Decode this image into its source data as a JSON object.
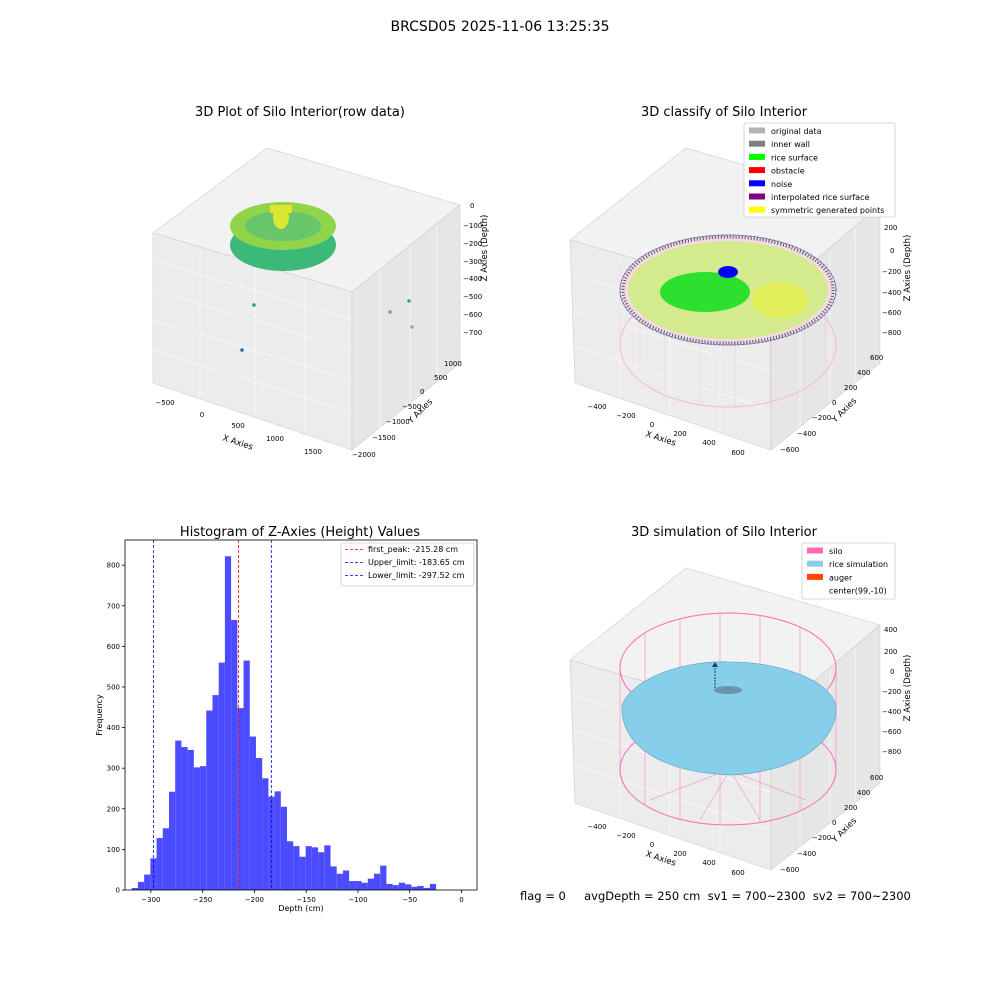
{
  "figure": {
    "suptitle": "BRCSD05 2025-11-06 13:25:35",
    "status_text": "flag = 0     avgDepth = 250 cm  sv1 = 700~2300  sv2 = 700~2300"
  },
  "colors": {
    "hist_bar": "#4b4bff",
    "peak_line": "#ff0000",
    "limit_line": "#0000ff",
    "silo": "#ff69b4",
    "rice_simulation": "#87ceeb",
    "auger": "#ff4500",
    "original_data": "#b3b3b3",
    "inner_wall": "#808080",
    "rice_surface": "#00ff00",
    "obstacle": "#ff0000",
    "noise": "#0000ff",
    "interpolated_rice_surface": "#800080",
    "symmetric_generated_points": "#ffff00"
  },
  "chart_data": [
    {
      "id": "raw",
      "type": "scatter",
      "title": "3D Plot of Silo Interior(row data)",
      "xlabel": "X Axies",
      "ylabel": "Y Axies",
      "zlabel": "Z Axies (Depth)",
      "xticks": [
        "−500",
        "0",
        "500",
        "1000",
        "1500"
      ],
      "yticks": [
        "1000",
        "500",
        "0",
        "−500",
        "−1000",
        "−1500",
        "−2000"
      ],
      "zticks": [
        "0",
        "−100",
        "−200",
        "−300",
        "−400",
        "−500",
        "−600",
        "−700"
      ],
      "grid": true
    },
    {
      "id": "classify",
      "type": "scatter",
      "title": "3D classify of Silo Interior",
      "xlabel": "X Axies",
      "ylabel": "Y Axies",
      "zlabel": "Z Axies (Depth)",
      "xticks": [
        "−400",
        "−200",
        "0",
        "200",
        "400",
        "600"
      ],
      "yticks": [
        "600",
        "400",
        "200",
        "0",
        "−200",
        "−400",
        "−600"
      ],
      "zticks": [
        "200",
        "0",
        "−200",
        "−400",
        "−600",
        "−800"
      ],
      "legend_position": "top-right",
      "legend": [
        {
          "label": "original data",
          "color": "#b3b3b3"
        },
        {
          "label": "inner wall",
          "color": "#808080"
        },
        {
          "label": "rice surface",
          "color": "#00ff00"
        },
        {
          "label": "obstacle",
          "color": "#ff0000"
        },
        {
          "label": "noise",
          "color": "#0000ff"
        },
        {
          "label": "interpolated rice surface",
          "color": "#800080"
        },
        {
          "label": "symmetric generated points",
          "color": "#ffff00"
        }
      ],
      "grid": true
    },
    {
      "id": "hist",
      "type": "bar",
      "title": "Histogram of Z-Axies (Height) Values",
      "xlabel": "Depth (cm)",
      "ylabel": "Frequency",
      "xlim": [
        -325,
        15
      ],
      "ylim": [
        0,
        862
      ],
      "xticks": [
        -300,
        -250,
        -200,
        -150,
        -100,
        -50,
        0
      ],
      "yticks": [
        0,
        100,
        200,
        300,
        400,
        500,
        600,
        700,
        800
      ],
      "bin_start": -318.5,
      "bin_width": 6.0,
      "values": [
        5,
        20,
        38,
        78,
        128,
        152,
        242,
        368,
        352,
        345,
        302,
        305,
        442,
        480,
        560,
        822,
        665,
        448,
        565,
        378,
        325,
        275,
        230,
        243,
        205,
        120,
        108,
        82,
        108,
        105,
        93,
        110,
        58,
        40,
        48,
        22,
        22,
        18,
        28,
        40,
        60,
        15,
        12,
        18,
        14,
        8,
        10,
        5,
        15
      ],
      "lines": [
        {
          "label": "first_peak: -215.28 cm",
          "x": -215.28,
          "color": "#ff0000"
        },
        {
          "label": "Upper_limit: -183.65 cm",
          "x": -183.65,
          "color": "#0000ff"
        },
        {
          "label": "Lower_limit: -297.52 cm",
          "x": -297.52,
          "color": "#0000ff"
        }
      ],
      "legend_position": "top-right"
    },
    {
      "id": "sim",
      "type": "scatter",
      "title": "3D simulation of Silo Interior",
      "xlabel": "X Axies",
      "ylabel": "Y Axies",
      "zlabel": "Z Axies (Depth)",
      "xticks": [
        "−400",
        "−200",
        "0",
        "200",
        "400",
        "600"
      ],
      "yticks": [
        "600",
        "400",
        "200",
        "0",
        "−200",
        "−400",
        "−600"
      ],
      "zticks": [
        "400",
        "200",
        "0",
        "−200",
        "−400",
        "−600",
        "−800"
      ],
      "legend_position": "top-right",
      "legend": [
        {
          "label": "silo",
          "color": "#ff69b4"
        },
        {
          "label": "rice simulation",
          "color": "#87ceeb"
        },
        {
          "label": "auger",
          "color": "#ff4500"
        },
        {
          "label": "center(99,-10)",
          "color": "#ffffff"
        }
      ],
      "grid": true
    }
  ]
}
